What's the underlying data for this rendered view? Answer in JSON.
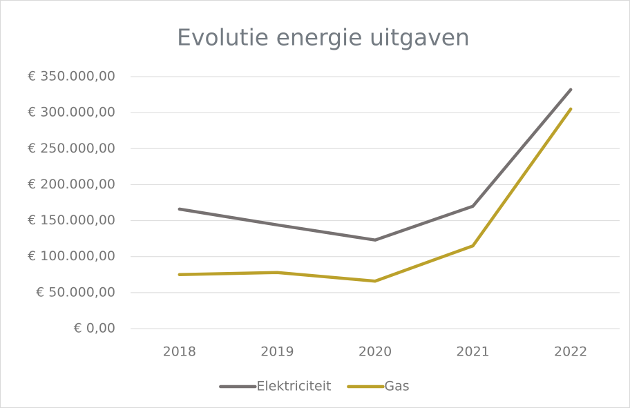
{
  "chart_data": {
    "type": "line",
    "title": "Evolutie energie uitgaven",
    "categories": [
      "2018",
      "2019",
      "2020",
      "2021",
      "2022"
    ],
    "series": [
      {
        "name": "Elektriciteit",
        "color": "#767171",
        "values": [
          166000,
          144000,
          123000,
          170000,
          332000
        ]
      },
      {
        "name": "Gas",
        "color": "#bba12b",
        "values": [
          75000,
          78000,
          66000,
          115000,
          305000
        ]
      }
    ],
    "ylim": [
      0,
      350000
    ],
    "yticks": [
      {
        "value": 0,
        "label": "€ 0,00"
      },
      {
        "value": 50000,
        "label": "€ 50.000,00"
      },
      {
        "value": 100000,
        "label": "€ 100.000,00"
      },
      {
        "value": 150000,
        "label": "€ 150.000,00"
      },
      {
        "value": 200000,
        "label": "€ 200.000,00"
      },
      {
        "value": 250000,
        "label": "€ 250.000,00"
      },
      {
        "value": 300000,
        "label": "€ 300.000,00"
      },
      {
        "value": 350000,
        "label": "€ 350.000,00"
      }
    ],
    "grid": true,
    "legend": "bottom"
  }
}
